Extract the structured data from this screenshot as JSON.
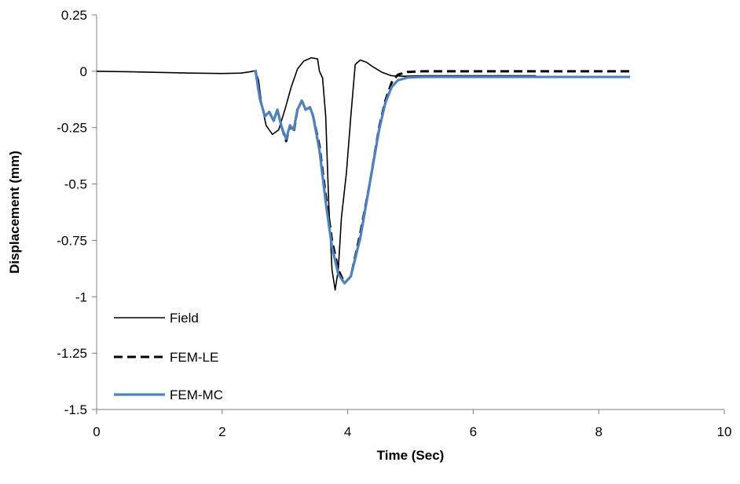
{
  "chart_data": {
    "type": "line",
    "title": "",
    "xlabel": "Time (Sec)",
    "ylabel": "Displacement (mm)",
    "xlim": [
      0,
      10
    ],
    "ylim": [
      -1.5,
      0.25
    ],
    "x_ticks": [
      "0",
      "2",
      "4",
      "6",
      "8",
      "10"
    ],
    "y_ticks": [
      "0.25",
      "0",
      "-0.25",
      "-0.5",
      "-0.75",
      "-1",
      "-1.25",
      "-1.5"
    ],
    "grid": false,
    "legend_position": "bottom-left",
    "series": [
      {
        "name": "Field",
        "color": "#000000",
        "style": "solid",
        "points": [
          [
            0,
            0
          ],
          [
            0.5,
            -0.002
          ],
          [
            1.0,
            -0.005
          ],
          [
            1.5,
            -0.008
          ],
          [
            2.0,
            -0.01
          ],
          [
            2.3,
            -0.008
          ],
          [
            2.45,
            -0.002
          ],
          [
            2.53,
            0.003
          ],
          [
            2.58,
            -0.04
          ],
          [
            2.63,
            -0.15
          ],
          [
            2.7,
            -0.24
          ],
          [
            2.8,
            -0.28
          ],
          [
            2.9,
            -0.26
          ],
          [
            3.0,
            -0.17
          ],
          [
            3.1,
            -0.07
          ],
          [
            3.2,
            0.01
          ],
          [
            3.3,
            0.045
          ],
          [
            3.42,
            0.06
          ],
          [
            3.52,
            0.055
          ],
          [
            3.55,
            0.0
          ],
          [
            3.6,
            -0.03
          ],
          [
            3.65,
            -0.2
          ],
          [
            3.7,
            -0.6
          ],
          [
            3.75,
            -0.88
          ],
          [
            3.8,
            -0.97
          ],
          [
            3.85,
            -0.88
          ],
          [
            3.9,
            -0.65
          ],
          [
            3.98,
            -0.45
          ],
          [
            4.05,
            -0.2
          ],
          [
            4.12,
            0.03
          ],
          [
            4.2,
            0.05
          ],
          [
            4.3,
            0.04
          ],
          [
            4.4,
            0.02
          ],
          [
            4.55,
            -0.005
          ],
          [
            4.7,
            -0.02
          ],
          [
            4.9,
            -0.022
          ],
          [
            5.2,
            -0.02
          ],
          [
            6.0,
            -0.02
          ],
          [
            7.0,
            -0.02
          ]
        ]
      },
      {
        "name": "FEM-LE",
        "color": "#000000",
        "style": "dashed",
        "points": [
          [
            2.53,
            0.005
          ],
          [
            2.6,
            -0.12
          ],
          [
            2.68,
            -0.2
          ],
          [
            2.75,
            -0.18
          ],
          [
            2.82,
            -0.22
          ],
          [
            2.88,
            -0.17
          ],
          [
            2.95,
            -0.25
          ],
          [
            3.02,
            -0.31
          ],
          [
            3.08,
            -0.24
          ],
          [
            3.14,
            -0.27
          ],
          [
            3.2,
            -0.17
          ],
          [
            3.27,
            -0.13
          ],
          [
            3.33,
            -0.17
          ],
          [
            3.4,
            -0.16
          ],
          [
            3.45,
            -0.2
          ],
          [
            3.55,
            -0.33
          ],
          [
            3.65,
            -0.55
          ],
          [
            3.75,
            -0.75
          ],
          [
            3.85,
            -0.88
          ],
          [
            3.95,
            -0.94
          ],
          [
            4.05,
            -0.91
          ],
          [
            4.2,
            -0.72
          ],
          [
            4.35,
            -0.5
          ],
          [
            4.5,
            -0.25
          ],
          [
            4.6,
            -0.13
          ],
          [
            4.7,
            -0.05
          ],
          [
            4.8,
            -0.015
          ],
          [
            4.95,
            -0.003
          ],
          [
            5.2,
            0.0
          ],
          [
            6.0,
            0.0
          ],
          [
            7.0,
            0.0
          ],
          [
            8.5,
            0.0
          ]
        ]
      },
      {
        "name": "FEM-MC",
        "color": "#4F81BD",
        "style": "solid",
        "points": [
          [
            2.53,
            0.005
          ],
          [
            2.6,
            -0.12
          ],
          [
            2.68,
            -0.2
          ],
          [
            2.75,
            -0.18
          ],
          [
            2.82,
            -0.22
          ],
          [
            2.88,
            -0.17
          ],
          [
            2.95,
            -0.25
          ],
          [
            3.02,
            -0.3
          ],
          [
            3.08,
            -0.24
          ],
          [
            3.14,
            -0.26
          ],
          [
            3.2,
            -0.17
          ],
          [
            3.27,
            -0.13
          ],
          [
            3.33,
            -0.17
          ],
          [
            3.4,
            -0.16
          ],
          [
            3.45,
            -0.2
          ],
          [
            3.55,
            -0.35
          ],
          [
            3.65,
            -0.58
          ],
          [
            3.75,
            -0.78
          ],
          [
            3.85,
            -0.9
          ],
          [
            3.95,
            -0.94
          ],
          [
            4.05,
            -0.91
          ],
          [
            4.2,
            -0.74
          ],
          [
            4.35,
            -0.5
          ],
          [
            4.5,
            -0.26
          ],
          [
            4.6,
            -0.14
          ],
          [
            4.7,
            -0.07
          ],
          [
            4.8,
            -0.04
          ],
          [
            4.95,
            -0.028
          ],
          [
            5.2,
            -0.025
          ],
          [
            6.0,
            -0.025
          ],
          [
            7.0,
            -0.025
          ],
          [
            8.5,
            -0.025
          ]
        ]
      }
    ]
  }
}
